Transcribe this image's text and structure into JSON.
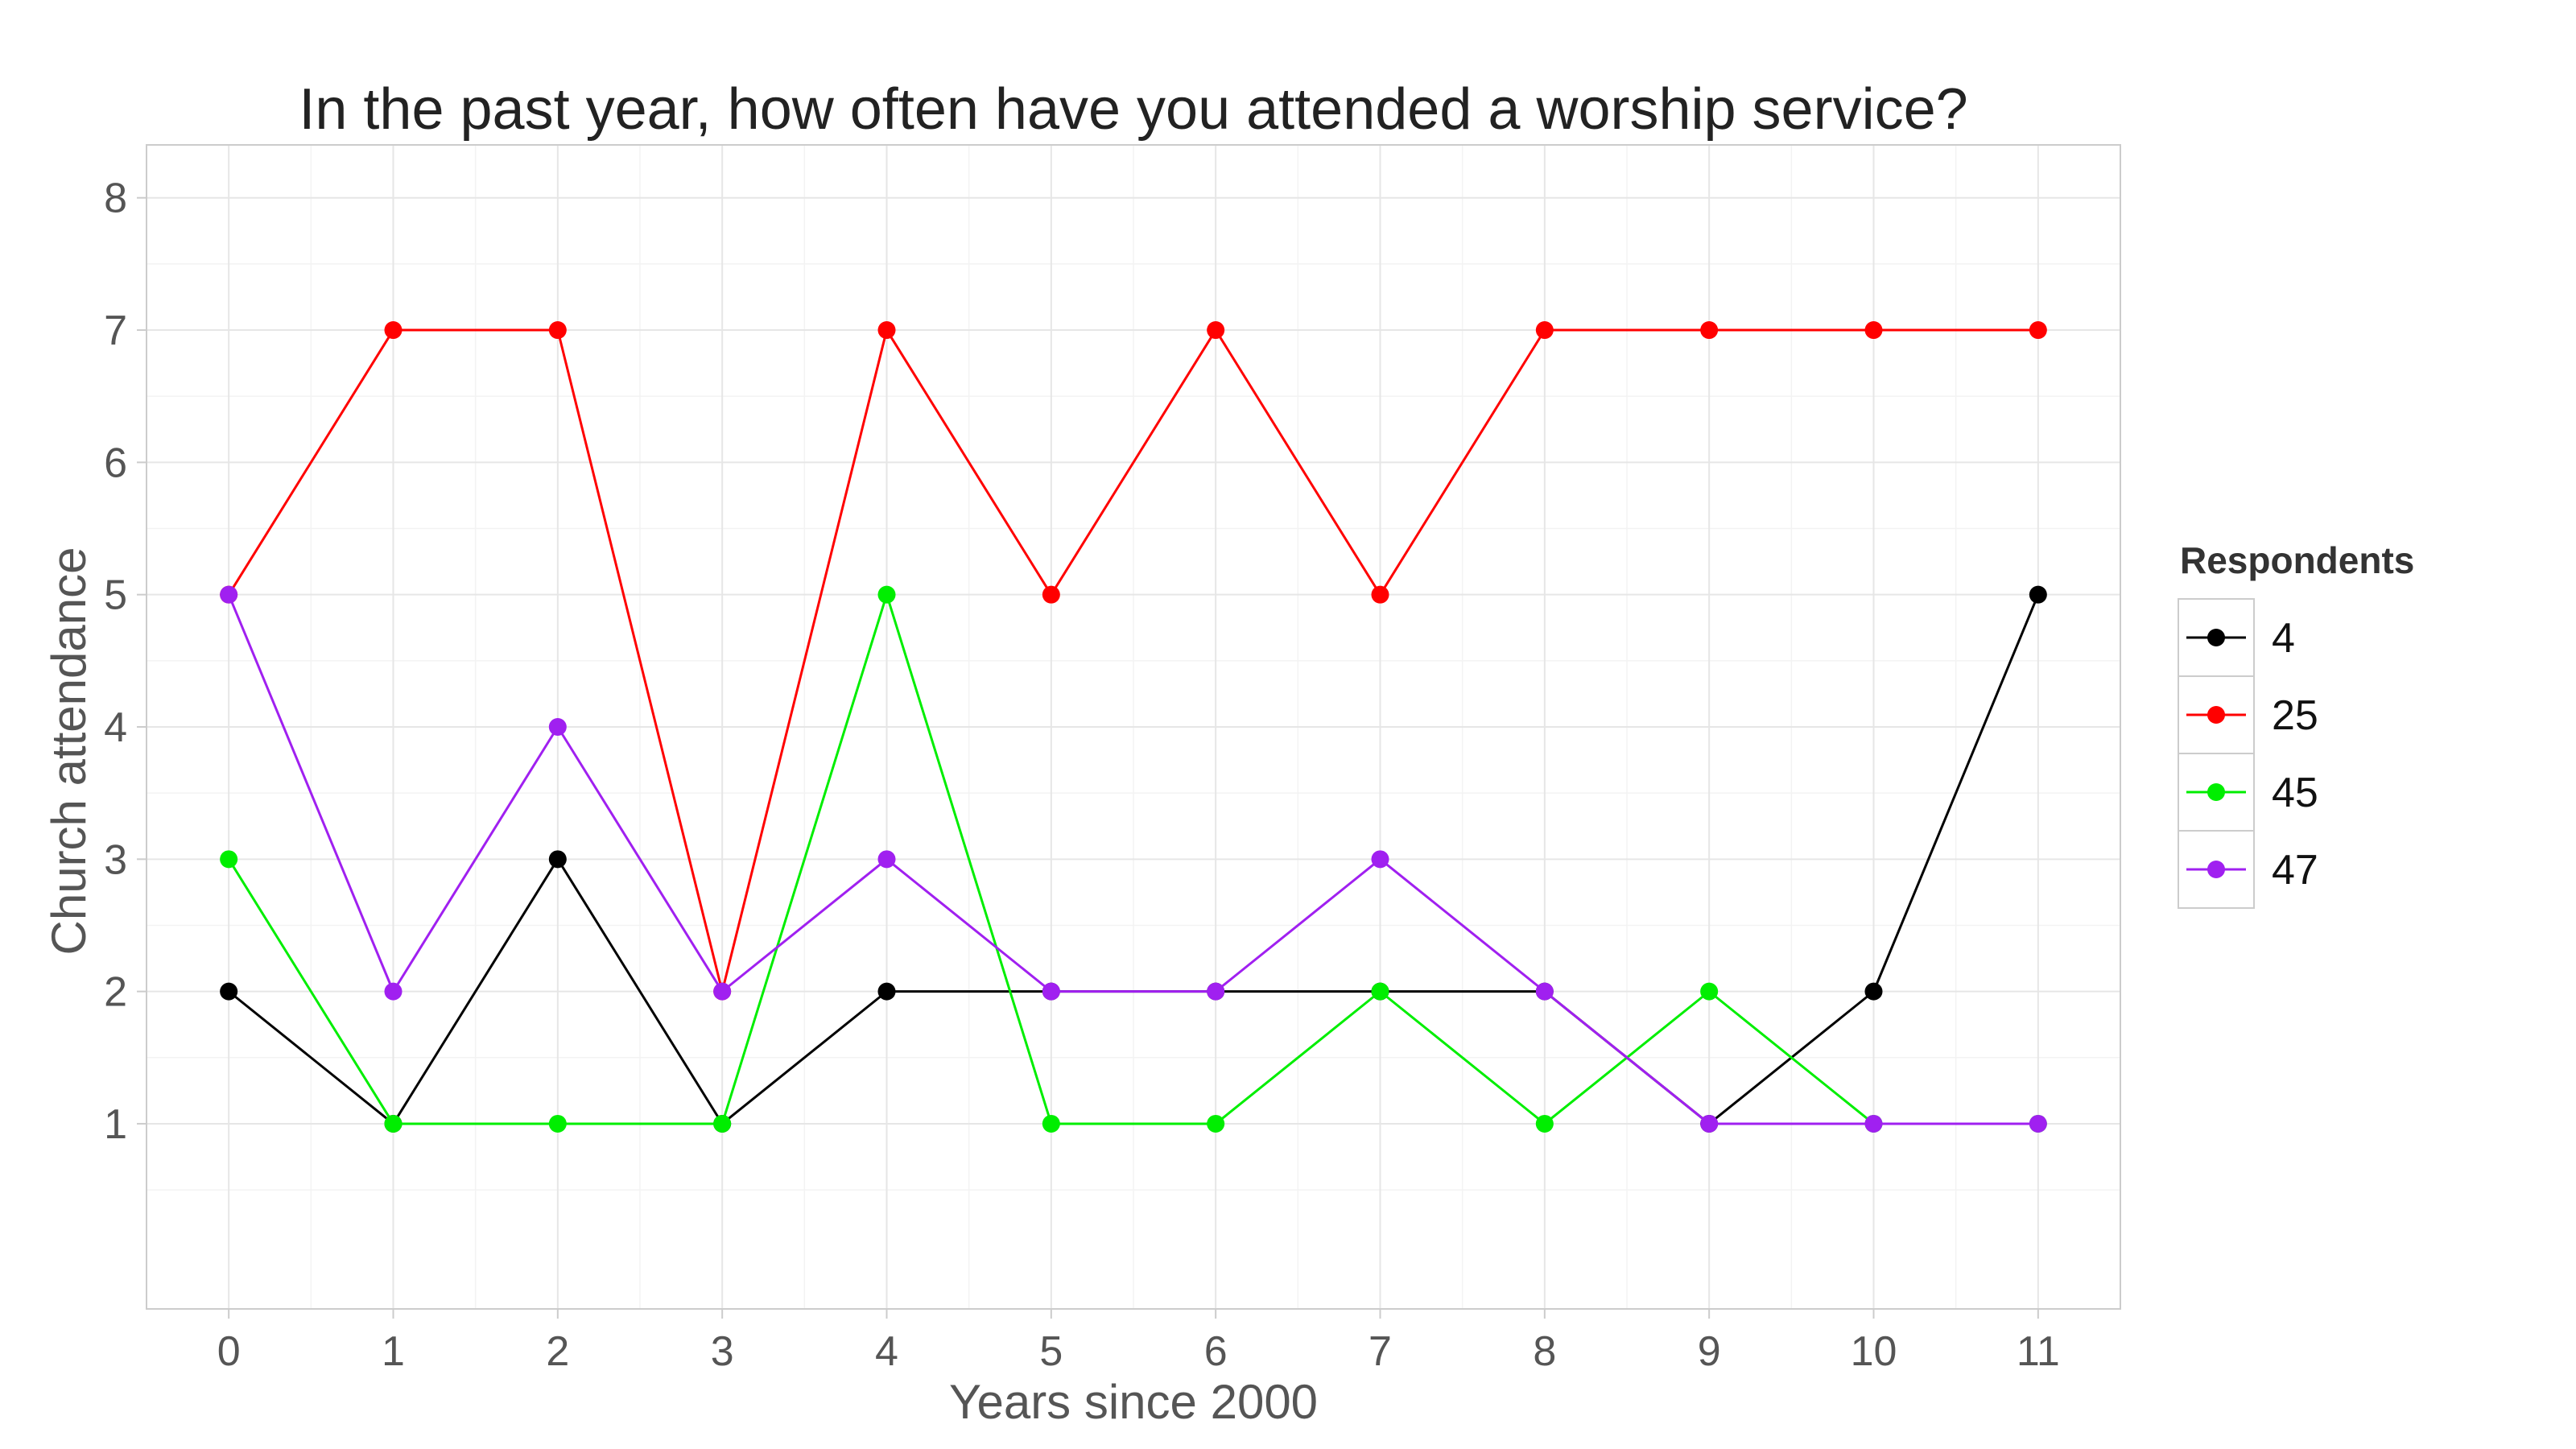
{
  "chart_data": {
    "type": "line",
    "title": "In the past year, how often have you attended a worship service?",
    "xlabel": "Years since 2000",
    "ylabel": "Church attendance",
    "x": [
      0,
      1,
      2,
      3,
      4,
      5,
      6,
      7,
      8,
      9,
      10,
      11
    ],
    "xlim": [
      -0.5,
      11.5
    ],
    "ylim": [
      -0.4,
      8.4
    ],
    "x_ticks": [
      0,
      1,
      2,
      3,
      4,
      5,
      6,
      7,
      8,
      9,
      10,
      11
    ],
    "y_ticks": [
      1,
      2,
      3,
      4,
      5,
      6,
      7,
      8
    ],
    "grid": true,
    "legend": {
      "title": "Respondents",
      "position": "right"
    },
    "series": [
      {
        "name": "4",
        "color": "#000000",
        "values": [
          2,
          1,
          3,
          1,
          2,
          2,
          2,
          2,
          2,
          1,
          2,
          5
        ]
      },
      {
        "name": "25",
        "color": "#ff0000",
        "values": [
          5,
          7,
          7,
          2,
          7,
          5,
          7,
          5,
          7,
          7,
          7,
          7
        ]
      },
      {
        "name": "45",
        "color": "#00ee00",
        "values": [
          3,
          1,
          1,
          1,
          5,
          1,
          1,
          2,
          1,
          2,
          1,
          1
        ]
      },
      {
        "name": "47",
        "color": "#a020f0",
        "values": [
          5,
          2,
          4,
          2,
          3,
          2,
          2,
          3,
          2,
          1,
          1,
          1
        ]
      }
    ]
  }
}
